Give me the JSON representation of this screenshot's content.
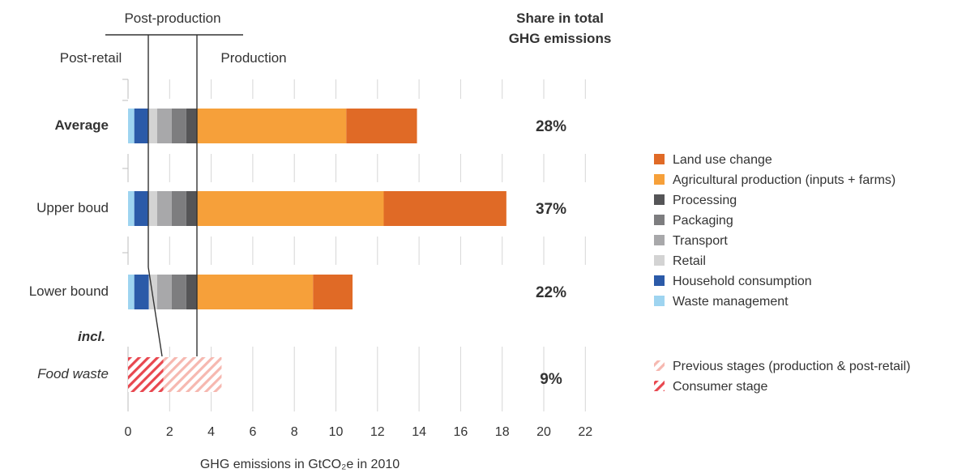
{
  "chart_data": {
    "type": "bar",
    "orientation": "horizontal",
    "stacked": true,
    "xlabel": "GHG emissions in GtCO₂e in 2010",
    "xlim": [
      0,
      22
    ],
    "x_ticks": [
      "0",
      "2",
      "4",
      "6",
      "8",
      "10",
      "12",
      "14",
      "16",
      "18",
      "20",
      "22"
    ],
    "grid": "vertical",
    "share_header": [
      "Share in total",
      "GHG emissions"
    ],
    "stage_labels": {
      "post_production": "Post-production",
      "post_retail": "Post-retail",
      "production": "Production"
    },
    "categories": [
      "Average",
      "Upper boud",
      "Lower bound"
    ],
    "shares": [
      "28%",
      "37%",
      "22%"
    ],
    "series": [
      {
        "name": "Waste management",
        "color": "#9ed4f0",
        "values": [
          0.3,
          0.3,
          0.3
        ]
      },
      {
        "name": "Household consumption",
        "color": "#2b5aa8",
        "values": [
          0.7,
          0.7,
          0.7
        ]
      },
      {
        "name": "Retail",
        "color": "#d3d3d3",
        "values": [
          0.4,
          0.4,
          0.4
        ]
      },
      {
        "name": "Transport",
        "color": "#a8a8aa",
        "values": [
          0.7,
          0.7,
          0.7
        ]
      },
      {
        "name": "Packaging",
        "color": "#7d7d7f",
        "values": [
          0.7,
          0.7,
          0.7
        ]
      },
      {
        "name": "Processing",
        "color": "#555557",
        "values": [
          0.5,
          0.5,
          0.5
        ]
      },
      {
        "name": "Agricultural production (inputs + farms)",
        "color": "#f6a03a",
        "values": [
          7.2,
          9.0,
          5.6
        ]
      },
      {
        "name": "Land use change",
        "color": "#e06a26",
        "values": [
          3.4,
          5.9,
          1.9
        ]
      }
    ],
    "legend_order": [
      "Land use change",
      "Agricultural production (inputs + farms)",
      "Processing",
      "Packaging",
      "Transport",
      "Retail",
      "Household consumption",
      "Waste management"
    ],
    "food_waste": {
      "label_top": "incl.",
      "label": "Food waste",
      "share": "9%",
      "series": [
        {
          "name": "Consumer stage",
          "color": "#e8474f",
          "value": 1.7
        },
        {
          "name": "Previous stages (production & post-retail)",
          "color": "#f6b8b0",
          "value": 2.8
        }
      ],
      "legend_order": [
        "Previous stages (production & post-retail)",
        "Consumer stage"
      ]
    }
  }
}
